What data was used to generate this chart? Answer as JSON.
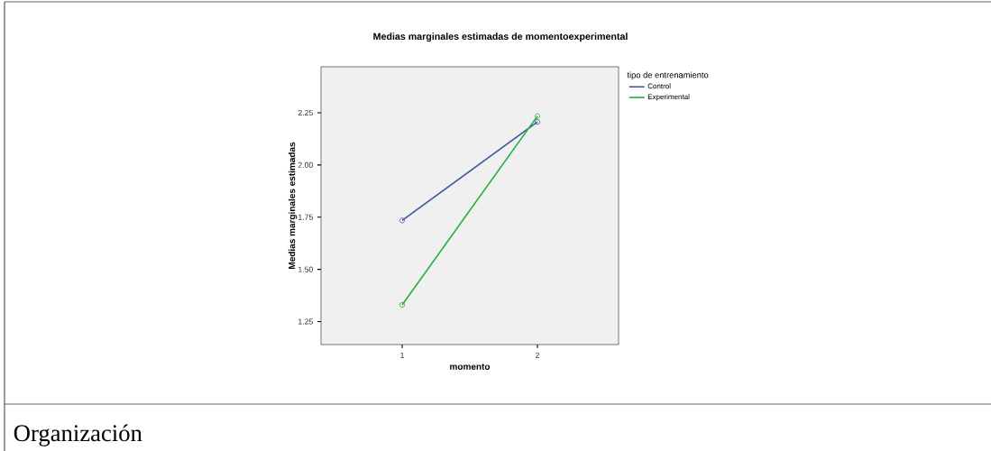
{
  "chart_data": {
    "type": "line",
    "title": "Medias marginales estimadas de momentoexperimental",
    "xlabel": "momento",
    "ylabel": "Medias marginales estimadas",
    "legend_title": "tipo de entrenamiento",
    "categories": [
      "1",
      "2"
    ],
    "series": [
      {
        "name": "Control",
        "color": "#3c56a0",
        "values": [
          1.734,
          2.206
        ]
      },
      {
        "name": "Experimental",
        "color": "#22b03a",
        "values": [
          1.33,
          2.234
        ]
      }
    ],
    "ylim": [
      1.14,
      2.47
    ],
    "yticks": [
      {
        "value": 1.25,
        "label": "1.25"
      },
      {
        "value": 1.5,
        "label": "1.50"
      },
      {
        "value": 1.75,
        "label": "1.75"
      },
      {
        "value": 2.0,
        "label": "2.00"
      },
      {
        "value": 2.25,
        "label": "2.25"
      }
    ],
    "marker": "circle",
    "line_style": "solid",
    "legend": "top right",
    "grid": false,
    "annotations": [
      "Organización"
    ]
  }
}
